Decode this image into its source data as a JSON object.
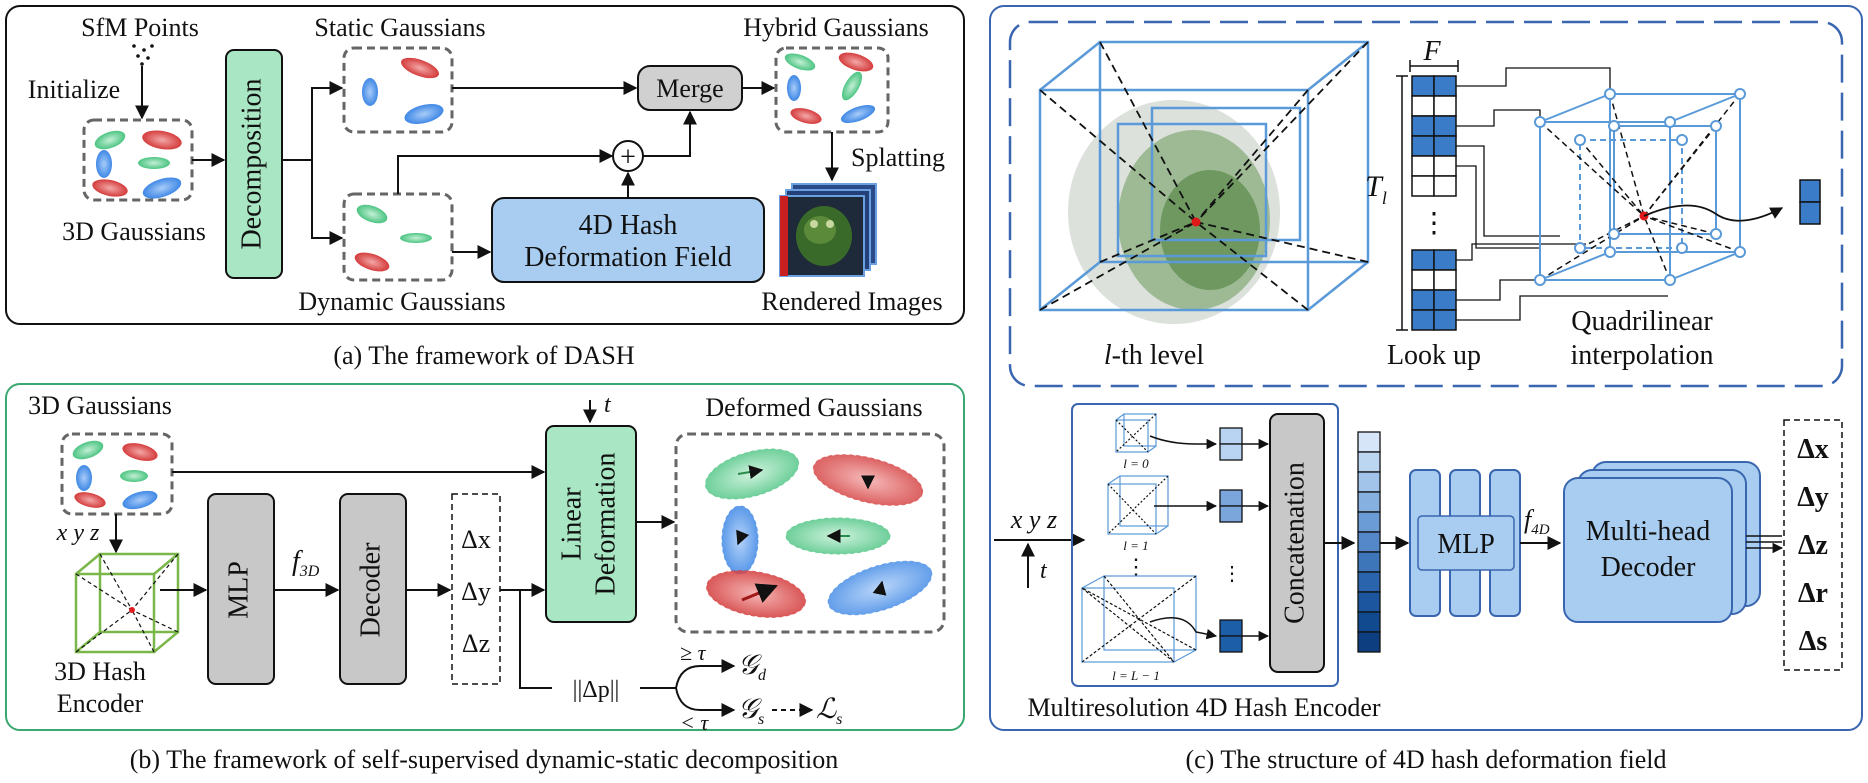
{
  "panel_a": {
    "caption": "(a) The framework of DASH",
    "sfm_points": "SfM Points",
    "initialize": "Initialize",
    "gaussians_3d": "3D Gaussians",
    "decomposition": "Decomposition",
    "static_gaussians": "Static Gaussians",
    "dynamic_gaussians": "Dynamic Gaussians",
    "merge": "Merge",
    "plus": "+",
    "hash_line1": "4D Hash",
    "hash_line2": "Deformation Field",
    "hybrid_gaussians": "Hybrid Gaussians",
    "splatting": "Splatting",
    "rendered_images": "Rendered Images"
  },
  "panel_b": {
    "caption": "(b) The framework of self-supervised dynamic-static decomposition",
    "gaussians_3d": "3D Gaussians",
    "xyz": "x y z",
    "hash_encoder_line1": "3D Hash",
    "hash_encoder_line2": "Encoder",
    "mlp": "MLP",
    "f3d_base": "f",
    "f3d_sub": "3D",
    "decoder": "Decoder",
    "dx": "Δx",
    "dy": "Δy",
    "dz": "Δz",
    "t": "t",
    "linear_line1": "Linear",
    "linear_line2": "Deformation",
    "deformed_gaussians": "Deformed Gaussians",
    "norm": "||Δp||",
    "ge_tau": "≥ τ",
    "lt_tau": "< τ",
    "g_d": "𝒢",
    "g_d_sub": "d",
    "g_s": "𝒢",
    "g_s_sub": "s",
    "l_s": "ℒ",
    "l_s_sub": "s"
  },
  "panel_c": {
    "caption": "(c) The structure of 4D hash deformation field",
    "l_th_level": "l-th level",
    "l_th_prefix": "l",
    "l_th_suffix": "-th level",
    "F": "F",
    "T_l": "T",
    "T_l_sub": "l",
    "ellipsis": "⋮",
    "look_up": "Look up",
    "quad_line1": "Quadrilinear",
    "quad_line2": "interpolation",
    "xyz": "x y z",
    "t": "t",
    "level0": "l = 0",
    "level1": "l = 1",
    "levelL": "l = L − 1",
    "dots": "⋮",
    "concatenation": "Concatenation",
    "mlp": "MLP",
    "f4d_base": "f",
    "f4d_sub": "4D",
    "decoder_line1": "Multi-head",
    "decoder_line2": "Decoder",
    "encoder_label": "Multiresolution 4D Hash Encoder",
    "outputs": [
      "Δx",
      "Δy",
      "Δz",
      "Δr",
      "Δs"
    ]
  },
  "colors": {
    "green": "#a8e6c4",
    "blue": "#a8cdf0",
    "gray": "#d0d0d0",
    "red_g": "#d94a4a",
    "blue_g": "#4a8fe0",
    "green_g": "#5cc88a",
    "frame_blue": "#3a66b0",
    "frame_green": "#3aa870"
  }
}
